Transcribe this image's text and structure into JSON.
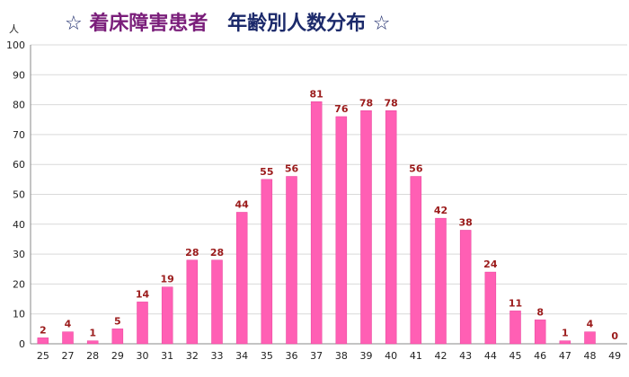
{
  "title": {
    "star": "☆",
    "part1": "着床障害患者",
    "part2": "年齢別人数分布"
  },
  "unit": "人",
  "colors": {
    "bar": "#ff5fb4",
    "bar_edge": "#e8409a",
    "label": "#9b1b1b",
    "grid": "#d9d9d9",
    "axis": "#888888"
  },
  "chart_data": {
    "type": "bar",
    "categories": [
      "25",
      "27",
      "28",
      "29",
      "30",
      "31",
      "32",
      "33",
      "34",
      "35",
      "36",
      "37",
      "38",
      "39",
      "40",
      "41",
      "42",
      "43",
      "44",
      "45",
      "46",
      "47",
      "48",
      "49"
    ],
    "values": [
      2,
      4,
      1,
      5,
      14,
      19,
      28,
      28,
      44,
      55,
      56,
      81,
      76,
      78,
      78,
      56,
      42,
      38,
      24,
      11,
      8,
      1,
      4,
      0
    ],
    "ylim": [
      0,
      100
    ],
    "yticks": [
      0,
      10,
      20,
      30,
      40,
      50,
      60,
      70,
      80,
      90,
      100
    ],
    "grid": true,
    "data_labels": true
  }
}
